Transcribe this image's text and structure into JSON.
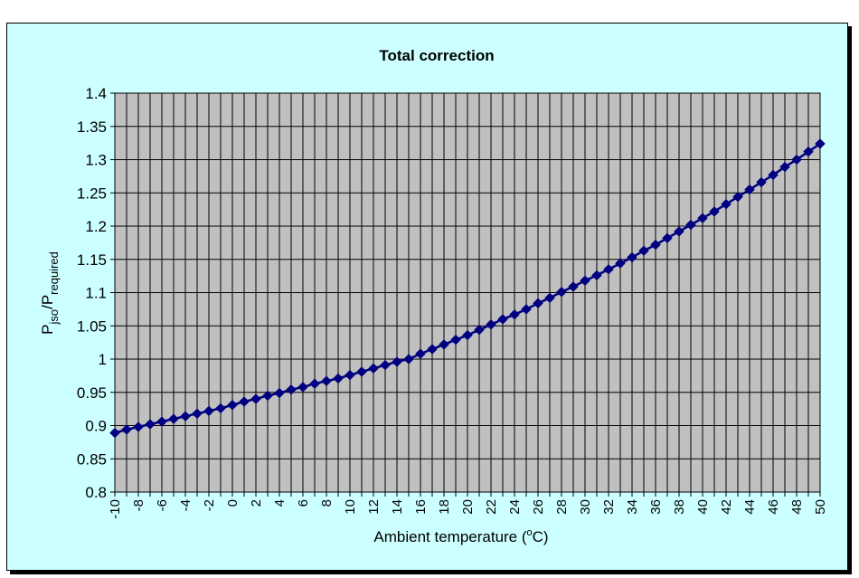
{
  "chart_data": {
    "type": "line",
    "title": "Total correction",
    "xlabel": {
      "main": "Ambient temperature (",
      "sup": "o",
      "tail": "C)"
    },
    "ylabel": {
      "p1": "P",
      "sub1": "jso",
      "p2": "/P",
      "sub2": "required"
    },
    "ylim": [
      0.8,
      1.4
    ],
    "yticks": [
      "0.8",
      "0.85",
      "0.9",
      "0.95",
      "1",
      "1.05",
      "1.1",
      "1.15",
      "1.2",
      "1.25",
      "1.3",
      "1.35",
      "1.4"
    ],
    "xticks": [
      "-10",
      "-8",
      "-6",
      "-4",
      "-2",
      "0",
      "2",
      "4",
      "6",
      "8",
      "10",
      "12",
      "14",
      "16",
      "18",
      "20",
      "22",
      "24",
      "26",
      "28",
      "30",
      "32",
      "34",
      "36",
      "38",
      "40",
      "42",
      "44",
      "46",
      "48",
      "50"
    ],
    "grid": true,
    "plot_background": "#c0c0c0",
    "series_color": "#000080",
    "frame_background": "#ccffff",
    "series": [
      {
        "x": [
          -10,
          -9,
          -8,
          -7,
          -6,
          -5,
          -4,
          -3,
          -2,
          -1,
          0,
          1,
          2,
          3,
          4,
          5,
          6,
          7,
          8,
          9,
          10,
          11,
          12,
          13,
          14,
          15,
          16,
          17,
          18,
          19,
          20,
          21,
          22,
          23,
          24,
          25,
          26,
          27,
          28,
          29,
          30,
          31,
          32,
          33,
          34,
          35,
          36,
          37,
          38,
          39,
          40,
          41,
          42,
          43,
          44,
          45,
          46,
          47,
          48,
          49,
          50
        ],
        "y": [
          0.889,
          0.894,
          0.898,
          0.902,
          0.906,
          0.91,
          0.914,
          0.918,
          0.922,
          0.926,
          0.931,
          0.936,
          0.94,
          0.945,
          0.949,
          0.954,
          0.958,
          0.963,
          0.967,
          0.971,
          0.976,
          0.981,
          0.986,
          0.991,
          0.996,
          1.0,
          1.008,
          1.015,
          1.022,
          1.029,
          1.036,
          1.044,
          1.052,
          1.06,
          1.067,
          1.075,
          1.084,
          1.092,
          1.101,
          1.109,
          1.118,
          1.126,
          1.135,
          1.144,
          1.153,
          1.163,
          1.172,
          1.182,
          1.192,
          1.202,
          1.212,
          1.222,
          1.233,
          1.244,
          1.255,
          1.266,
          1.277,
          1.289,
          1.3,
          1.312,
          1.324
        ]
      }
    ]
  }
}
